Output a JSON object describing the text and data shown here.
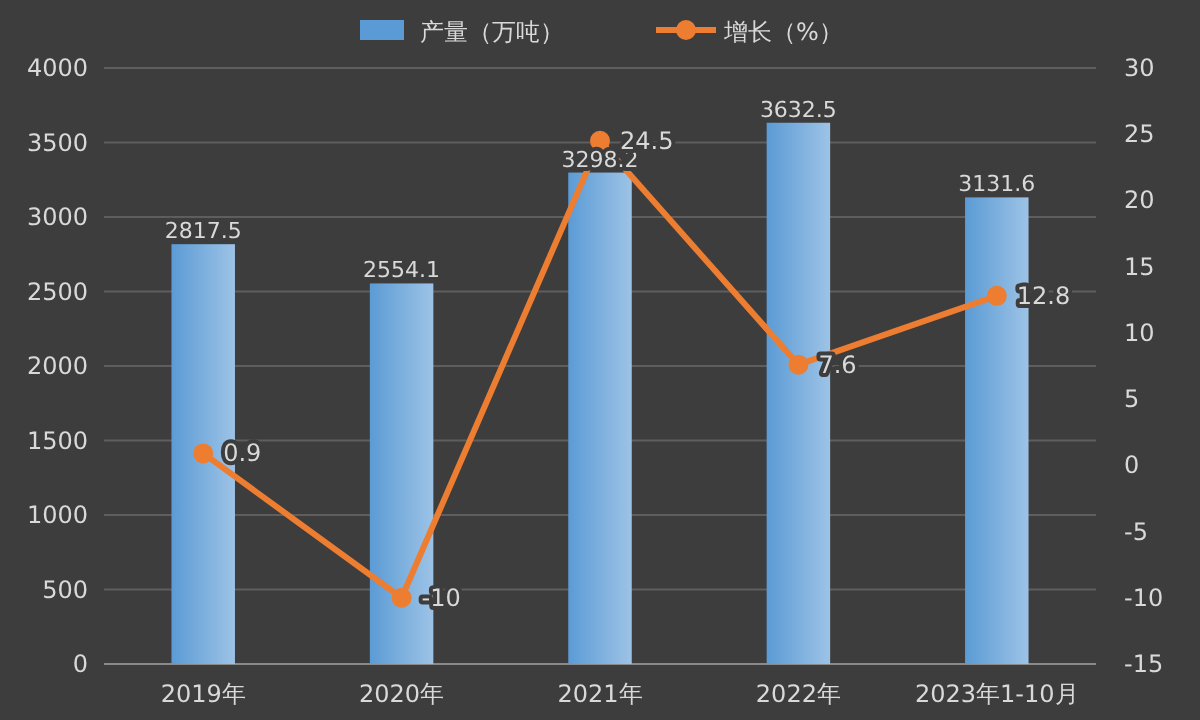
{
  "chart_data": {
    "type": "bar",
    "categories": [
      "2019年",
      "2020年",
      "2021年",
      "2022年",
      "2023年1-10月"
    ],
    "series": [
      {
        "name": "产量（万吨）",
        "color": "#5b9bd5",
        "values": [
          2817.5,
          2554.1,
          3298.2,
          3632.5,
          3131.6
        ]
      },
      {
        "name": "增长（%）",
        "type": "line",
        "axis": "y2",
        "color": "#ed7d31",
        "marker": "circle",
        "values": [
          0.9,
          -10,
          24.5,
          7.6,
          12.8
        ]
      }
    ],
    "ylim": [
      0,
      4000
    ],
    "yticks": [
      0,
      500,
      1000,
      1500,
      2000,
      2500,
      3000,
      3500,
      4000
    ],
    "y2lim": [
      -15,
      30
    ],
    "y2ticks": [
      -15,
      -10,
      -5,
      0,
      5,
      10,
      15,
      20,
      25,
      30
    ],
    "grid": "y",
    "legend": "top",
    "data_labels": true
  }
}
